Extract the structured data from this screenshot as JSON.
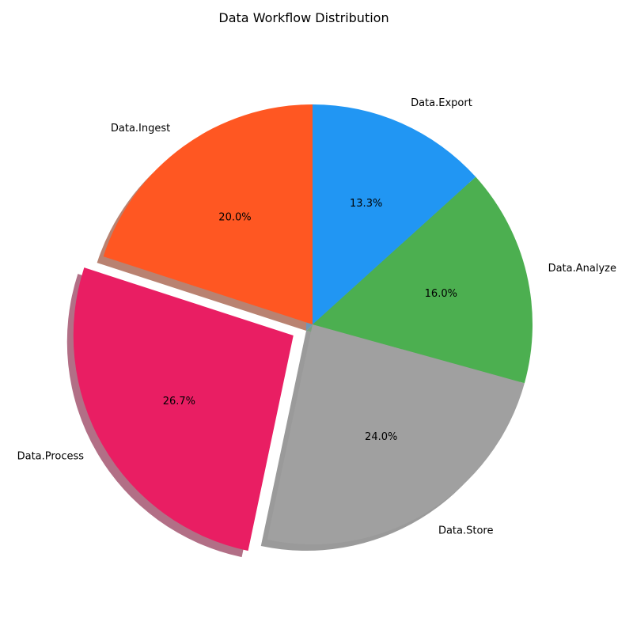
{
  "chart_data": {
    "type": "pie",
    "title": "Data Workflow Distribution",
    "categories": [
      "Data.Ingest",
      "Data.Process",
      "Data.Store",
      "Data.Analyze",
      "Data.Export"
    ],
    "values": [
      20.0,
      26.7,
      24.0,
      16.0,
      13.3
    ],
    "value_labels": [
      "20.0%",
      "26.7%",
      "24.0%",
      "16.0%",
      "13.3%"
    ],
    "colors": [
      "#FF5722",
      "#E91E63",
      "#A0A0A0",
      "#4CAF50",
      "#2196F3"
    ],
    "exploded": [
      "Data.Process"
    ],
    "shadow": true,
    "start_angle_deg": 90,
    "direction": "counterclockwise"
  }
}
